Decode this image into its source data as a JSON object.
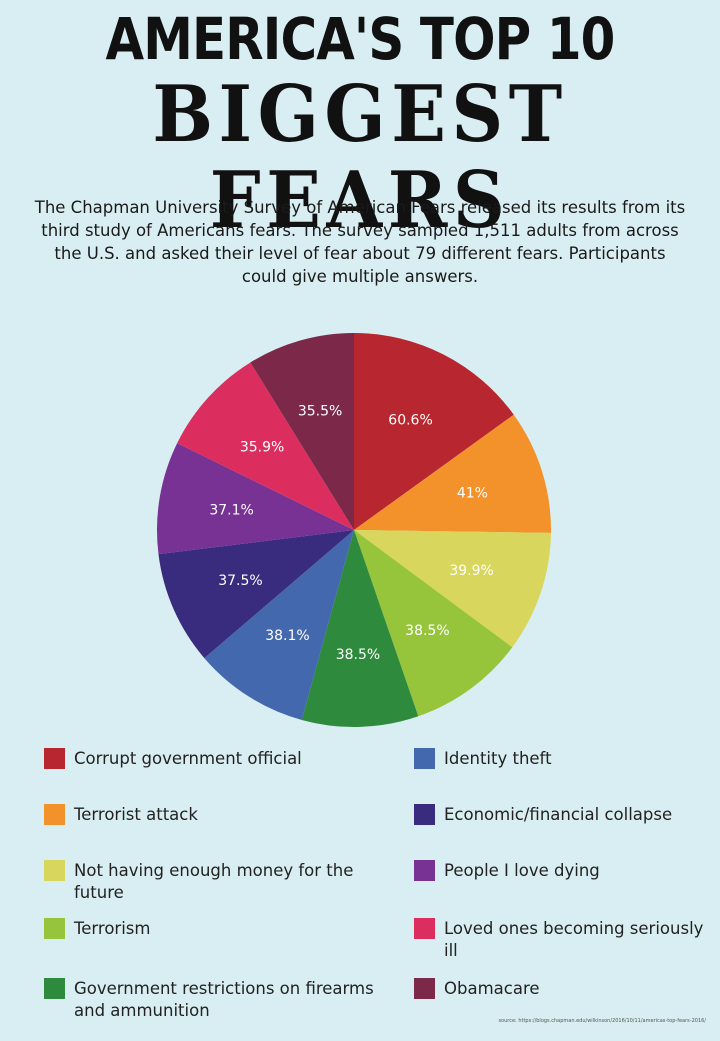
{
  "header": {
    "title_line1": "AMERICA'S TOP 10",
    "title_line2": "BIGGEST FEARS",
    "intro": "The Chapman University Survey of American Fears released its results from its third study of Americans fears. The survey sampled 1,511 adults from across the U.S. and asked their level of fear about 79 different fears. Participants could give multiple answers."
  },
  "chart_data": {
    "type": "pie",
    "labels": [
      "Corrupt government official",
      "Terrorist attack",
      "Not having enough money for the future",
      "Terrorism",
      "Government restrictions on firearms and ammunition",
      "Identity theft",
      "Economic/financial collapse",
      "People I love dying",
      "Loved ones becoming seriously ill",
      "Obamacare"
    ],
    "values": [
      60.6,
      41,
      39.9,
      38.5,
      38.5,
      38.1,
      37.5,
      37.1,
      35.9,
      35.5
    ],
    "value_labels": [
      "60.6%",
      "41%",
      "39.9%",
      "38.5%",
      "38.5%",
      "38.1%",
      "37.5%",
      "37.1%",
      "35.9%",
      "35.5%"
    ],
    "colors": [
      "#b8262f",
      "#f3922b",
      "#d8d65c",
      "#96c53c",
      "#2e8a3c",
      "#4468ad",
      "#392b7e",
      "#773294",
      "#dc2e5e",
      "#7c2848"
    ],
    "label_colors": [
      "#ffffff",
      "#ffffff",
      "#ffffff",
      "#ffffff",
      "#ffffff",
      "#ffffff",
      "#ffffff",
      "#ffffff",
      "#ffffff",
      "#ffffff"
    ],
    "start_angle_deg": 0,
    "direction": "clockwise",
    "legend_placement": "bottom, two columns"
  },
  "source": "source: https://blogs.chapman.edu/wilkinson/2016/10/11/americas-top-fears-2016/"
}
